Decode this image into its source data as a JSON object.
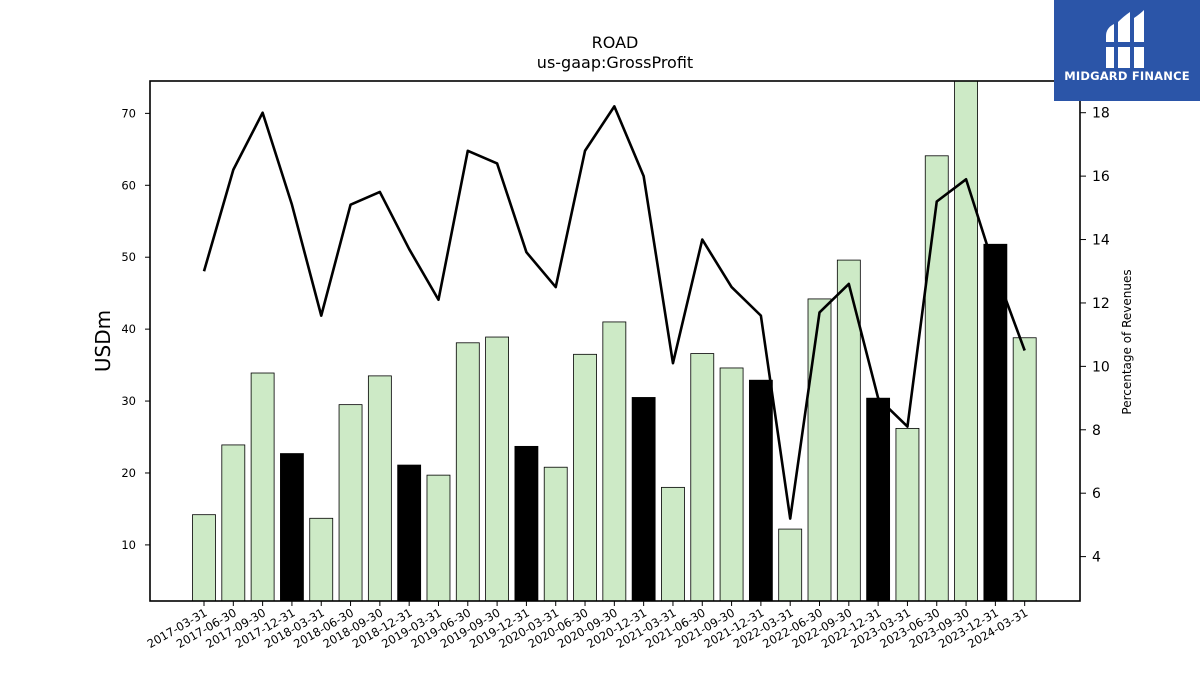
{
  "chart_data": {
    "type": "bar",
    "title": "ROAD",
    "subtitle": "us-gaap:GrossProfit",
    "ylabel": "USDm",
    "y2label": "Percentage of Revenues",
    "categories": [
      "2017-03-31",
      "2017-06-30",
      "2017-09-30",
      "2017-12-31",
      "2018-03-31",
      "2018-06-30",
      "2018-09-30",
      "2018-12-31",
      "2019-03-31",
      "2019-06-30",
      "2019-09-30",
      "2019-12-31",
      "2020-03-31",
      "2020-06-30",
      "2020-09-30",
      "2020-12-31",
      "2021-03-31",
      "2021-06-30",
      "2021-09-30",
      "2021-12-31",
      "2022-03-31",
      "2022-06-30",
      "2022-09-30",
      "2022-12-31",
      "2023-03-31",
      "2023-06-30",
      "2023-09-30",
      "2023-12-31",
      "2024-03-31"
    ],
    "series": [
      {
        "type": "bar",
        "axis": "left",
        "values": [
          14.2,
          23.9,
          33.9,
          22.7,
          13.7,
          29.5,
          33.5,
          21.1,
          19.7,
          38.1,
          38.9,
          23.7,
          20.8,
          36.5,
          41.0,
          30.5,
          18.0,
          36.6,
          34.6,
          32.9,
          12.2,
          44.2,
          49.6,
          30.4,
          26.2,
          64.1,
          74.5,
          51.8,
          38.8
        ],
        "highlight": [
          false,
          false,
          false,
          true,
          false,
          false,
          false,
          true,
          false,
          false,
          false,
          true,
          false,
          false,
          false,
          true,
          false,
          false,
          false,
          true,
          false,
          false,
          false,
          true,
          false,
          false,
          false,
          true,
          false
        ]
      },
      {
        "type": "line",
        "axis": "right",
        "values": [
          13.0,
          16.2,
          18.0,
          15.1,
          11.6,
          15.1,
          15.5,
          13.7,
          12.1,
          16.8,
          16.4,
          13.6,
          12.5,
          16.8,
          18.2,
          16.0,
          10.1,
          14.0,
          12.5,
          11.6,
          5.2,
          11.7,
          12.6,
          9.0,
          8.1,
          15.2,
          15.9,
          13.0,
          10.5
        ]
      }
    ],
    "ylim": [
      2.2,
      74.5
    ],
    "y2lim": [
      2.6,
      19.0
    ],
    "yticks": [
      10,
      20,
      30,
      40,
      50,
      60,
      70
    ],
    "y2ticks": [
      4,
      6,
      8,
      10,
      12,
      14,
      16,
      18
    ],
    "grid": false,
    "colors": {
      "bar": "#cdeac6",
      "bar_highlight": "#000000",
      "line": "#000000"
    }
  },
  "logo": {
    "text": "MIDGARD FINANCE",
    "icon": "midgard-logo-icon",
    "color": "#2b55a8"
  }
}
